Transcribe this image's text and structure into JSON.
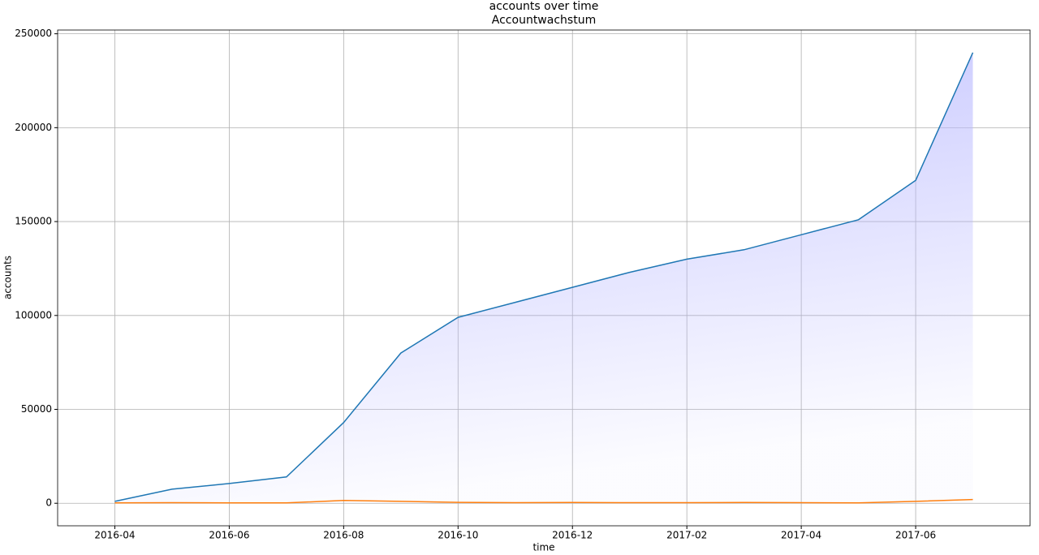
{
  "chart_data": {
    "type": "line",
    "title": "accounts over time",
    "subtitle": "Accountwachstum",
    "x_label": "time",
    "y_label": "accounts",
    "x": [
      "2016-04",
      "2016-05",
      "2016-06",
      "2016-07",
      "2016-08",
      "2016-09",
      "2016-10",
      "2016-11",
      "2016-12",
      "2017-01",
      "2017-02",
      "2017-03",
      "2017-04",
      "2017-05",
      "2017-06",
      "2017-07"
    ],
    "series": [
      {
        "color": "#1f77b4",
        "values": [
          1000,
          7500,
          10500,
          14000,
          43000,
          80000,
          99000,
          107000,
          115000,
          123000,
          130000,
          135000,
          143000,
          151000,
          172000,
          240000
        ]
      },
      {
        "color": "#ff7f0e",
        "values": [
          200,
          300,
          200,
          200,
          1500,
          1000,
          500,
          300,
          400,
          300,
          300,
          400,
          300,
          200,
          1000,
          2000
        ]
      }
    ],
    "fill_color": "#b8b8ff",
    "xlim": [
      "2016-03",
      "2017-08"
    ],
    "xticks": [
      "2016-04",
      "2016-06",
      "2016-08",
      "2016-10",
      "2016-12",
      "2017-02",
      "2017-04",
      "2017-06"
    ],
    "ylim": [
      -12000,
      252000
    ],
    "yticks": [
      0,
      50000,
      100000,
      150000,
      200000,
      250000
    ],
    "grid": true
  }
}
